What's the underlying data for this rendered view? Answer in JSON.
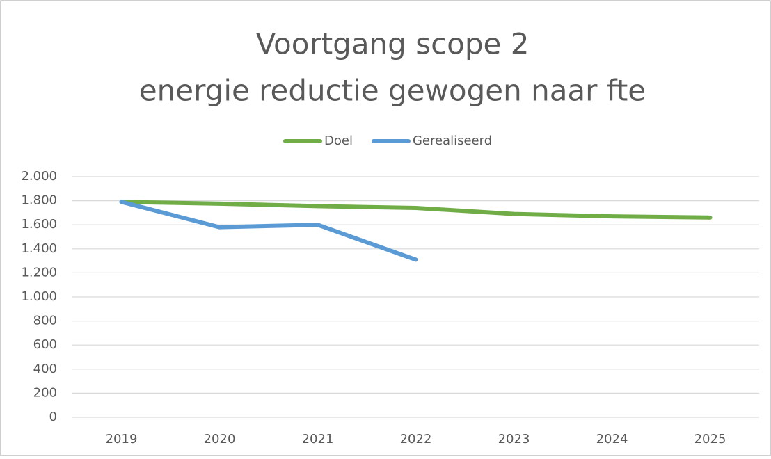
{
  "chart_data": {
    "type": "line",
    "title": [
      "Voortgang scope 2",
      "energie reductie gewogen naar fte"
    ],
    "categories": [
      "2019",
      "2020",
      "2021",
      "2022",
      "2023",
      "2024",
      "2025"
    ],
    "series": [
      {
        "name": "Doel",
        "color": "#70ad47",
        "values": [
          1790,
          1775,
          1755,
          1740,
          1690,
          1670,
          1660
        ]
      },
      {
        "name": "Gerealiseerd",
        "color": "#5b9bd5",
        "values": [
          1790,
          1580,
          1600,
          1310,
          null,
          null,
          null
        ]
      }
    ],
    "ylim": [
      0,
      2000
    ],
    "yticks": [
      0,
      200,
      400,
      600,
      800,
      {
        "value": 1000,
        "label": "1.000"
      },
      {
        "value": 1200,
        "label": "1.200"
      },
      {
        "value": 1400,
        "label": "1.400"
      },
      {
        "value": 1600,
        "label": "1.600"
      },
      {
        "value": 1800,
        "label": "1.800"
      },
      {
        "value": 2000,
        "label": "2.000"
      }
    ],
    "grid": true,
    "legend": "top"
  }
}
